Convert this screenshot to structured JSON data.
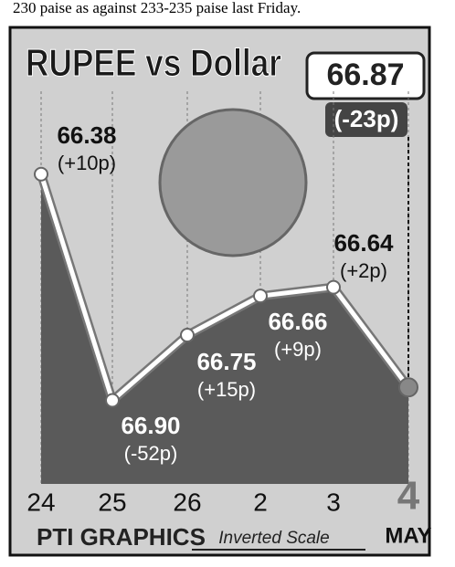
{
  "caption_top": "230 paise as against 233-235 paise last Friday.",
  "chart_data": {
    "type": "line",
    "title": "RUPEE vs Dollar",
    "categories": [
      "24",
      "25",
      "26",
      "2",
      "3",
      "4"
    ],
    "month_label": "MAY",
    "values": [
      66.38,
      66.9,
      66.75,
      66.66,
      66.64,
      66.87
    ],
    "value_labels": [
      "66.38",
      "66.90",
      "66.75",
      "66.66",
      "66.64",
      "66.87"
    ],
    "changes": [
      10,
      -52,
      15,
      9,
      2,
      -23
    ],
    "change_labels": [
      "(+10p)",
      "(-52p)",
      "(+15p)",
      "(+9p)",
      "(+2p)",
      "(-23p)"
    ],
    "ylim": [
      66.2,
      67.05
    ],
    "y_inverted": true,
    "grid": true,
    "line_color": "#ffffff",
    "area_color": "#5a5a5a",
    "scale_note": "Inverted Scale",
    "source": "PTI GRAPHICS"
  }
}
